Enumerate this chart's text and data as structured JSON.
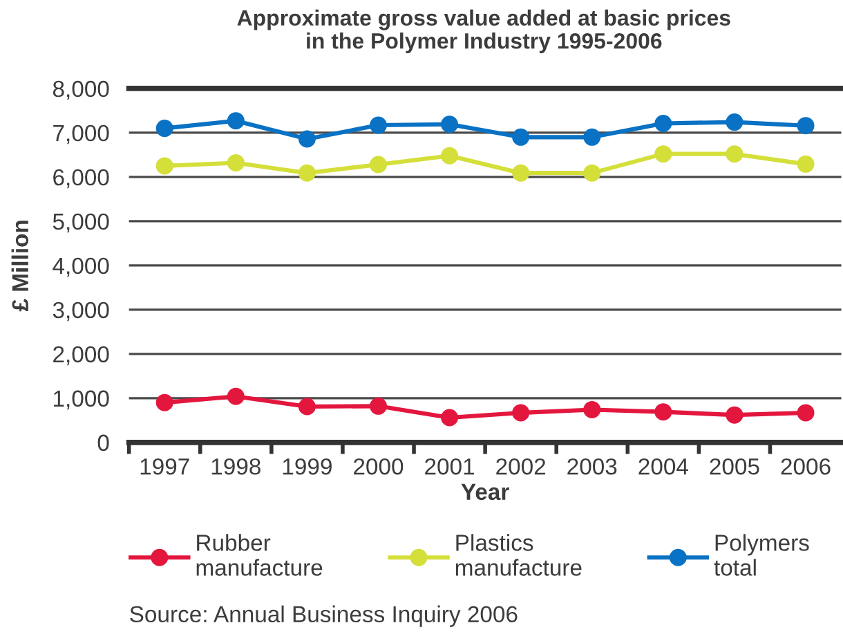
{
  "chart_data": {
    "type": "line",
    "title": "Approximate gross value added at basic prices\nin the Polymer Industry 1995-2006",
    "xlabel": "Year",
    "ylabel": "£ Million",
    "categories": [
      "1997",
      "1998",
      "1999",
      "2000",
      "2001",
      "2002",
      "2003",
      "2004",
      "2005",
      "2006"
    ],
    "series": [
      {
        "name": "Rubber\nmanufacture",
        "color": "#e3173e",
        "values": [
          900,
          1040,
          810,
          820,
          560,
          670,
          740,
          690,
          620,
          670
        ]
      },
      {
        "name": "Plastics\nmanufacture",
        "color": "#d4df3a",
        "values": [
          6250,
          6320,
          6090,
          6280,
          6480,
          6090,
          6090,
          6520,
          6520,
          6290
        ]
      },
      {
        "name": "Polymers\ntotal",
        "color": "#0a72c4",
        "values": [
          7100,
          7270,
          6860,
          7170,
          7190,
          6900,
          6900,
          7210,
          7240,
          7160
        ]
      }
    ],
    "ylim": [
      0,
      8000
    ],
    "yticks": [
      0,
      {
        "value": 1000,
        "label": "1,000"
      },
      {
        "value": 2000,
        "label": "2,000"
      },
      {
        "value": 3000,
        "label": "3,000"
      },
      {
        "value": 4000,
        "label": "4,000"
      },
      {
        "value": 5000,
        "label": "5,000"
      },
      {
        "value": 6000,
        "label": "6,000"
      },
      {
        "value": 7000,
        "label": "7,000"
      },
      {
        "value": 8000,
        "label": "8,000"
      }
    ],
    "grid": "y",
    "legend": "bottom",
    "marker": "circle",
    "line_style": "solid",
    "annotations": [
      "Source: Annual Business Inquiry 2006"
    ]
  }
}
